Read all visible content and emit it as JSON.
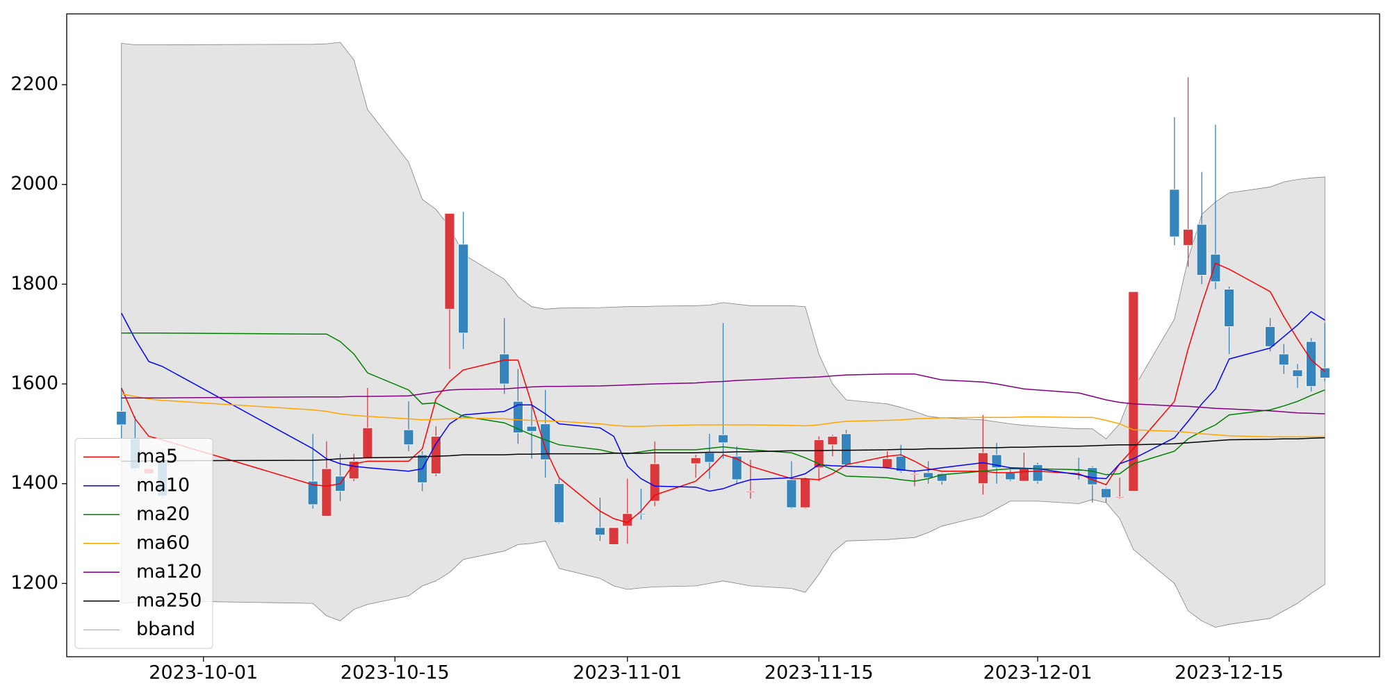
{
  "chart_data": {
    "type": "candlestick",
    "x": [
      "2023-09-25",
      "2023-09-26",
      "2023-09-27",
      "2023-09-28",
      "2023-10-09",
      "2023-10-10",
      "2023-10-11",
      "2023-10-12",
      "2023-10-13",
      "2023-10-16",
      "2023-10-17",
      "2023-10-18",
      "2023-10-19",
      "2023-10-20",
      "2023-10-23",
      "2023-10-24",
      "2023-10-25",
      "2023-10-26",
      "2023-10-27",
      "2023-10-30",
      "2023-10-31",
      "2023-11-01",
      "2023-11-02",
      "2023-11-03",
      "2023-11-06",
      "2023-11-07",
      "2023-11-08",
      "2023-11-09",
      "2023-11-10",
      "2023-11-13",
      "2023-11-14",
      "2023-11-15",
      "2023-11-16",
      "2023-11-17",
      "2023-11-20",
      "2023-11-21",
      "2023-11-22",
      "2023-11-23",
      "2023-11-24",
      "2023-11-27",
      "2023-11-28",
      "2023-11-29",
      "2023-11-30",
      "2023-12-01",
      "2023-12-04",
      "2023-12-05",
      "2023-12-06",
      "2023-12-07",
      "2023-12-08",
      "2023-12-11",
      "2023-12-12",
      "2023-12-13",
      "2023-12-14",
      "2023-12-15",
      "2023-12-18",
      "2023-12-19",
      "2023-12-20",
      "2023-12-21",
      "2023-12-22"
    ],
    "open": [
      1545,
      1490,
      1420,
      1445,
      1405,
      1335,
      1415,
      1410,
      1450,
      1508,
      1458,
      1420,
      1750,
      1880,
      1660,
      1565,
      1515,
      1520,
      1400,
      1312,
      1278,
      1315,
      1340,
      1365,
      1440,
      1462,
      1498,
      1455,
      1383,
      1408,
      1352,
      1432,
      1478,
      1500,
      1432,
      1455,
      1418,
      1422,
      1420,
      1400,
      1458,
      1422,
      1405,
      1438,
      1428,
      1432,
      1390,
      1372,
      1385,
      1990,
      1878,
      1920,
      1860,
      1790,
      1715,
      1660,
      1628,
      1685,
      1632
    ],
    "high": [
      1590,
      1535,
      1432,
      1470,
      1500,
      1485,
      1460,
      1460,
      1592,
      1565,
      1465,
      1515,
      1942,
      1945,
      1732,
      1630,
      1565,
      1588,
      1410,
      1372,
      1312,
      1410,
      1390,
      1485,
      1458,
      1500,
      1722,
      1475,
      1448,
      1445,
      1412,
      1495,
      1498,
      1508,
      1465,
      1478,
      1428,
      1445,
      1422,
      1538,
      1482,
      1428,
      1462,
      1442,
      1452,
      1435,
      1392,
      1412,
      1785,
      2135,
      2215,
      2025,
      2120,
      1795,
      1732,
      1680,
      1640,
      1692,
      1722
    ],
    "low": [
      1490,
      1425,
      1418,
      1370,
      1350,
      1335,
      1365,
      1405,
      1450,
      1465,
      1385,
      1415,
      1630,
      1670,
      1580,
      1480,
      1450,
      1412,
      1320,
      1285,
      1278,
      1280,
      1328,
      1355,
      1412,
      1410,
      1450,
      1400,
      1370,
      1350,
      1350,
      1405,
      1455,
      1435,
      1430,
      1422,
      1395,
      1400,
      1398,
      1378,
      1400,
      1405,
      1405,
      1400,
      1408,
      1362,
      1362,
      1370,
      1385,
      1878,
      1835,
      1800,
      1790,
      1660,
      1665,
      1620,
      1592,
      1585,
      1605
    ],
    "close": [
      1518,
      1430,
      1430,
      1375,
      1358,
      1430,
      1385,
      1445,
      1512,
      1478,
      1402,
      1495,
      1942,
      1702,
      1600,
      1502,
      1505,
      1448,
      1322,
      1297,
      1312,
      1340,
      1338,
      1440,
      1452,
      1443,
      1482,
      1408,
      1385,
      1352,
      1410,
      1488,
      1495,
      1438,
      1450,
      1425,
      1420,
      1412,
      1405,
      1462,
      1432,
      1408,
      1432,
      1405,
      1425,
      1398,
      1372,
      1374,
      1785,
      1895,
      1910,
      1818,
      1805,
      1715,
      1675,
      1638,
      1615,
      1595,
      1612
    ],
    "up_color": "#d9393c",
    "down_color": "#3584bb",
    "series": [
      {
        "name": "ma5",
        "color": "red",
        "values": [
          1592,
          1530,
          1495,
          1488,
          1398,
          1395,
          1400,
          1440,
          1445,
          1445,
          1470,
          1570,
          1605,
          1628,
          1648,
          1648,
          1560,
          1470,
          1412,
          1345,
          1330,
          1322,
          1345,
          1377,
          1405,
          1430,
          1458,
          1450,
          1435,
          1410,
          1410,
          1408,
          1420,
          1438,
          1455,
          1458,
          1445,
          1430,
          1425,
          1425,
          1422,
          1422,
          1424,
          1425,
          1420,
          1408,
          1398,
          1440,
          1470,
          1565,
          1670,
          1760,
          1842,
          1830,
          1785,
          1735,
          1690,
          1648,
          1625
        ]
      },
      {
        "name": "ma10",
        "color": "blue",
        "values": [
          1742,
          1690,
          1645,
          1635,
          1470,
          1450,
          1440,
          1435,
          1432,
          1425,
          1430,
          1480,
          1520,
          1538,
          1545,
          1558,
          1558,
          1540,
          1520,
          1512,
          1495,
          1435,
          1410,
          1395,
          1393,
          1385,
          1390,
          1400,
          1408,
          1412,
          1420,
          1438,
          1436,
          1435,
          1432,
          1428,
          1425,
          1428,
          1432,
          1442,
          1437,
          1432,
          1431,
          1430,
          1418,
          1412,
          1410,
          1440,
          1450,
          1492,
          1525,
          1560,
          1590,
          1650,
          1672,
          1695,
          1718,
          1745,
          1728
        ]
      },
      {
        "name": "ma20",
        "color": "green",
        "values": [
          1702,
          1702,
          1702,
          1702,
          1700,
          1700,
          1685,
          1660,
          1622,
          1588,
          1560,
          1562,
          1548,
          1535,
          1522,
          1510,
          1498,
          1488,
          1478,
          1468,
          1462,
          1460,
          1464,
          1468,
          1468,
          1471,
          1474,
          1471,
          1468,
          1462,
          1452,
          1440,
          1428,
          1415,
          1412,
          1408,
          1405,
          1410,
          1418,
          1425,
          1428,
          1430,
          1430,
          1430,
          1428,
          1425,
          1418,
          1420,
          1440,
          1465,
          1490,
          1505,
          1518,
          1538,
          1548,
          1556,
          1565,
          1577,
          1588
        ]
      },
      {
        "name": "ma60",
        "color": "orange",
        "values": [
          1580,
          1575,
          1570,
          1567,
          1548,
          1545,
          1540,
          1537,
          1535,
          1530,
          1528,
          1529,
          1530,
          1532,
          1530,
          1528,
          1527,
          1526,
          1525,
          1520,
          1517,
          1515,
          1515,
          1516,
          1518,
          1518,
          1518,
          1518,
          1518,
          1517,
          1516,
          1518,
          1522,
          1525,
          1527,
          1528,
          1530,
          1531,
          1532,
          1533,
          1533,
          1533,
          1534,
          1534,
          1533,
          1533,
          1527,
          1520,
          1508,
          1505,
          1503,
          1500,
          1498,
          1496,
          1494,
          1494,
          1494,
          1494,
          1494
        ]
      },
      {
        "name": "ma120",
        "color": "purple",
        "values": [
          1572,
          1572,
          1572,
          1572,
          1574,
          1574,
          1574,
          1575,
          1575,
          1576,
          1580,
          1584,
          1588,
          1589,
          1590,
          1592,
          1594,
          1595,
          1595,
          1596,
          1597,
          1598,
          1599,
          1600,
          1602,
          1604,
          1605,
          1607,
          1608,
          1612,
          1613,
          1614,
          1616,
          1618,
          1620,
          1620,
          1620,
          1614,
          1608,
          1604,
          1600,
          1595,
          1590,
          1588,
          1582,
          1575,
          1568,
          1563,
          1560,
          1556,
          1555,
          1553,
          1551,
          1550,
          1546,
          1544,
          1542,
          1541,
          1540
        ]
      },
      {
        "name": "ma250",
        "color": "black",
        "values": [
          1445,
          1445,
          1446,
          1446,
          1447,
          1448,
          1450,
          1451,
          1452,
          1453,
          1454,
          1455,
          1456,
          1458,
          1458,
          1459,
          1459,
          1460,
          1460,
          1460,
          1461,
          1461,
          1461,
          1462,
          1462,
          1463,
          1463,
          1464,
          1464,
          1466,
          1466,
          1466,
          1467,
          1467,
          1468,
          1469,
          1469,
          1470,
          1470,
          1472,
          1472,
          1473,
          1473,
          1474,
          1475,
          1476,
          1477,
          1478,
          1478,
          1480,
          1482,
          1484,
          1486,
          1488,
          1489,
          1490,
          1490,
          1491,
          1492
        ]
      }
    ],
    "bband": {
      "name": "bband",
      "color": "gray",
      "fill": "#e4e4e4",
      "upper": [
        2283,
        2280,
        2280,
        2280,
        2281,
        2282,
        2285,
        2250,
        2150,
        2045,
        1970,
        1950,
        1915,
        1860,
        1810,
        1775,
        1755,
        1750,
        1752,
        1753,
        1754,
        1755,
        1755,
        1756,
        1757,
        1758,
        1763,
        1760,
        1757,
        1757,
        1755,
        1660,
        1600,
        1568,
        1560,
        1553,
        1545,
        1535,
        1532,
        1528,
        1524,
        1520,
        1517,
        1515,
        1510,
        1510,
        1490,
        1520,
        1590,
        1730,
        1850,
        1940,
        1965,
        1983,
        1995,
        2005,
        2010,
        2013,
        2015
      ],
      "lower": [
        1160,
        1162,
        1164,
        1165,
        1160,
        1135,
        1125,
        1148,
        1158,
        1175,
        1195,
        1205,
        1222,
        1248,
        1265,
        1278,
        1280,
        1285,
        1230,
        1210,
        1195,
        1188,
        1191,
        1193,
        1195,
        1200,
        1205,
        1200,
        1195,
        1190,
        1182,
        1218,
        1262,
        1285,
        1288,
        1290,
        1292,
        1302,
        1315,
        1335,
        1350,
        1365,
        1365,
        1365,
        1360,
        1368,
        1362,
        1330,
        1268,
        1200,
        1145,
        1125,
        1112,
        1118,
        1130,
        1145,
        1160,
        1180,
        1198
      ]
    },
    "xlim": [
      "2023-09-21",
      "2023-12-26"
    ],
    "xticks": [
      "2023-10-01",
      "2023-10-15",
      "2023-11-01",
      "2023-11-15",
      "2023-12-01",
      "2023-12-15"
    ],
    "ylim": [
      1053,
      2342
    ],
    "yticks": [
      1200,
      1400,
      1600,
      1800,
      2000,
      2200
    ],
    "legend": "lower left"
  }
}
